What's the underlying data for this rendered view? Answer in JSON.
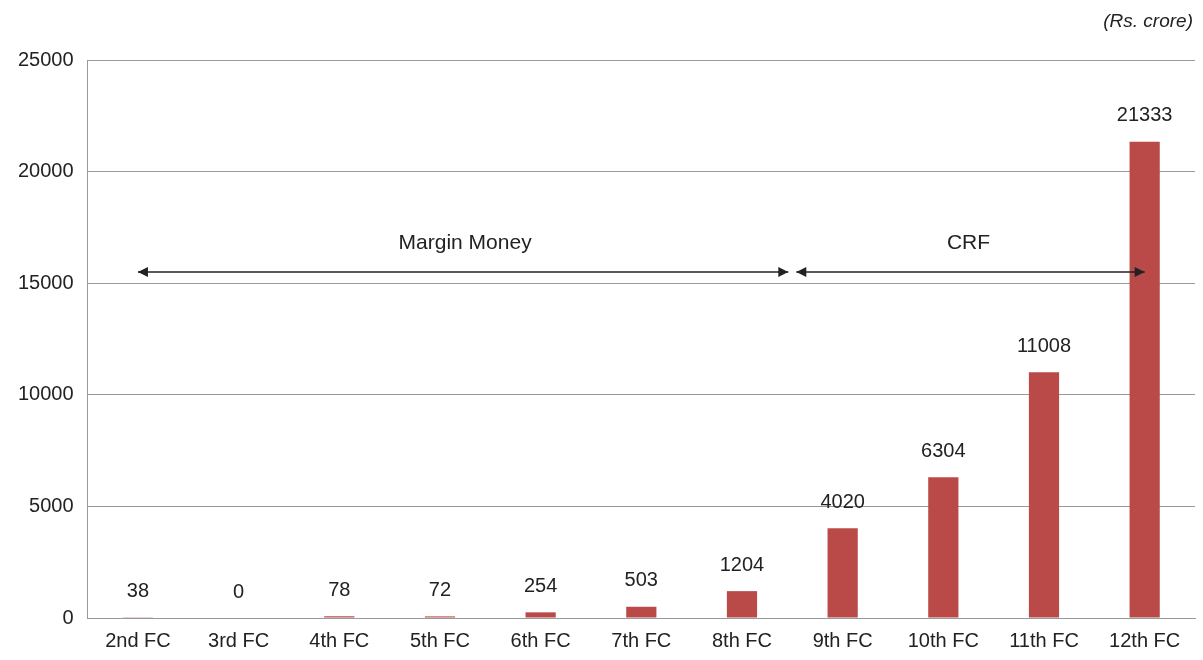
{
  "chart_data": {
    "type": "bar",
    "categories": [
      "2nd FC",
      "3rd FC",
      "4th FC",
      "5th FC",
      "6th FC",
      "7th FC",
      "8th FC",
      "9th FC",
      "10th FC",
      "11th FC",
      "12th FC"
    ],
    "values": [
      38,
      0,
      78,
      72,
      254,
      503,
      1204,
      4020,
      6304,
      11008,
      21333
    ],
    "color": "#b94a48",
    "ylim": [
      0,
      25000
    ],
    "yticks": [
      0,
      5000,
      10000,
      15000,
      20000,
      25000
    ],
    "grid": "y",
    "data_labels": true,
    "annotations": [
      "(Rs. crore)",
      "Margin Money",
      "CRF"
    ]
  }
}
